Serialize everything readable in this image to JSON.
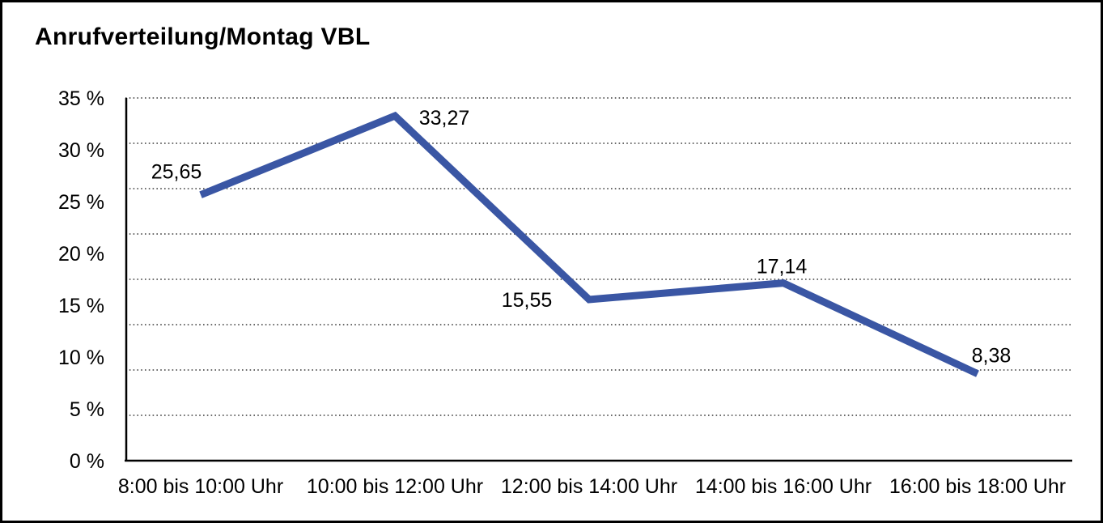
{
  "chart_data": {
    "type": "line",
    "title": "Anrufverteilung/Montag VBL",
    "categories": [
      "8:00 bis 10:00 Uhr",
      "10:00 bis 12:00 Uhr",
      "12:00 bis 14:00 Uhr",
      "14:00 bis 16:00 Uhr",
      "16:00 bis 18:00 Uhr"
    ],
    "values": [
      25.65,
      33.27,
      15.55,
      17.14,
      8.38
    ],
    "value_labels": [
      "25,65",
      "33,27",
      "15,55",
      "17,14",
      "8,38"
    ],
    "unit": "%",
    "xlabel": "",
    "ylabel": "",
    "ylim": [
      0,
      35
    ],
    "ytick_step": 5,
    "ytick_labels_top_to_bottom": [
      "35 %",
      "30 %",
      "25 %",
      "20 %",
      "15 %",
      "10 %",
      "5 %",
      "0 %"
    ],
    "grid": {
      "horizontal": true,
      "style": "dotted",
      "vertical": false
    },
    "legend": "none",
    "line_color": "#3A56A4",
    "axis_color": "#000000",
    "grid_color": "#3A3A3A",
    "text_color": "#000000",
    "background_color": "#FFFFFF"
  }
}
